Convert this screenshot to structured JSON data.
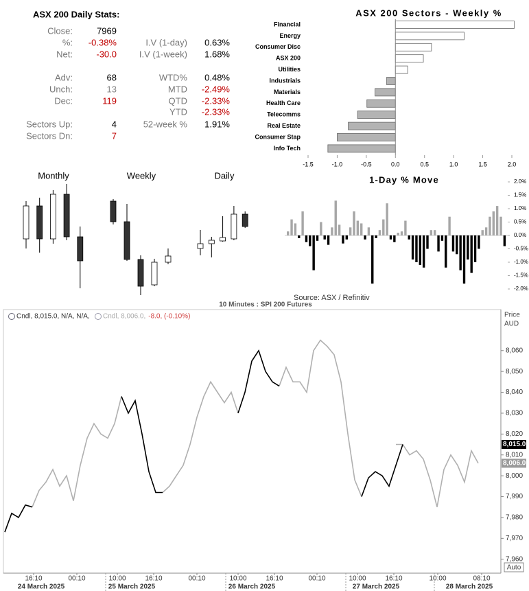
{
  "stats": {
    "title": "ASX 200 Daily Stats:",
    "left": [
      {
        "label": "Close:",
        "value": "7969"
      },
      {
        "label": "%:",
        "value": "-0.38%",
        "color": "#c00000"
      },
      {
        "label": "Net:",
        "value": "-30.0",
        "color": "#c00000"
      },
      {
        "label": "Adv:",
        "value": "68"
      },
      {
        "label": "Unch:",
        "value": "13",
        "color": "#888888"
      },
      {
        "label": "Dec:",
        "value": "119",
        "color": "#c00000"
      },
      {
        "label": "Sectors Up:",
        "value": "4"
      },
      {
        "label": "Sectors Dn:",
        "value": "7",
        "color": "#c00000"
      }
    ],
    "right": [
      {
        "label": "I.V (1-day)",
        "value": "0.63%"
      },
      {
        "label": "I.V (1-week)",
        "value": "1.68%"
      },
      {
        "label": "WTD%",
        "value": "0.48%"
      },
      {
        "label": "MTD",
        "value": "-2.49%",
        "color": "#c00000"
      },
      {
        "label": "QTD",
        "value": "-2.33%",
        "color": "#c00000"
      },
      {
        "label": "YTD",
        "value": "-2.33%",
        "color": "#c00000"
      },
      {
        "label": "52-week %",
        "value": "1.91%"
      }
    ]
  },
  "chart_data": [
    {
      "type": "hbar",
      "title": "ASX 200 Sectors - Weekly %",
      "categories": [
        "Financial",
        "Energy",
        "Consumer Disc",
        "ASX 200",
        "Utilities",
        "Industrials",
        "Materials",
        "Health Care",
        "Telecomms",
        "Real Estate",
        "Consumer Stap",
        "Info Tech"
      ],
      "values": [
        2.04,
        1.18,
        0.62,
        0.48,
        0.21,
        -0.15,
        -0.35,
        -0.49,
        -0.65,
        -0.81,
        -1.0,
        -1.16
      ],
      "positive_color": "#ffffff",
      "negative_color": "#b3b3b3",
      "xlim": [
        -1.5,
        2.0
      ],
      "xticks": [
        -1.5,
        {
          "value": -1,
          "label": "-1.0"
        },
        -0.5,
        {
          "value": 0,
          "label": "0.0"
        },
        0.5,
        {
          "value": 1,
          "label": "1.0"
        },
        1.5,
        {
          "value": 2,
          "label": "2.0"
        }
      ]
    },
    {
      "type": "candlestick",
      "title": "Monthly",
      "ylim": [
        0,
        165
      ],
      "open": [
        82,
        130,
        82,
        147,
        85
      ],
      "high": [
        137,
        142,
        153,
        162,
        100
      ],
      "low": [
        68,
        62,
        75,
        80,
        10
      ],
      "close": [
        130,
        82,
        147,
        85,
        50
      ]
    },
    {
      "type": "candlestick",
      "title": "Weekly",
      "ylim": [
        0,
        165
      ],
      "open": [
        137,
        107,
        52,
        15,
        48
      ],
      "high": [
        140,
        133,
        58,
        53,
        68
      ],
      "low": [
        103,
        50,
        0,
        13,
        45
      ],
      "close": [
        107,
        52,
        13,
        48,
        57
      ]
    },
    {
      "type": "candlestick",
      "title": "Daily",
      "ylim": [
        0,
        165
      ],
      "open": [
        68,
        75,
        79,
        82,
        118
      ],
      "high": [
        95,
        85,
        115,
        130,
        122
      ],
      "low": [
        58,
        55,
        78,
        80,
        98
      ],
      "close": [
        75,
        80,
        84,
        118,
        100
      ]
    },
    {
      "type": "column",
      "title": "1-Day % Move",
      "source": "Source: ASX / Refinitiv",
      "values": [
        0.15,
        0.6,
        0.45,
        -0.1,
        0.9,
        -0.25,
        -0.4,
        -1.3,
        -0.2,
        0.5,
        -0.15,
        -0.35,
        0.3,
        1.3,
        0.4,
        -0.3,
        -0.15,
        0.3,
        0.9,
        0.55,
        0.45,
        -0.15,
        0.3,
        -1.8,
        -0.1,
        0.2,
        0.6,
        1.2,
        -0.15,
        -0.25,
        0.1,
        0.15,
        0.55,
        -0.15,
        -0.9,
        -1.0,
        -1.1,
        -1.2,
        -0.5,
        0.2,
        0.2,
        -0.6,
        -0.2,
        -1.2,
        0.7,
        -0.6,
        -0.7,
        -1.3,
        -1.8,
        -0.9,
        -1.4,
        -1.0,
        -0.5,
        0.2,
        0.3,
        0.7,
        0.9,
        1.1,
        0.7,
        -0.4
      ],
      "positive_color": "#a6a6a6",
      "negative_color": "#000000",
      "ylim": [
        -2,
        2
      ],
      "yticks": [
        {
          "value": 2,
          "label": "2.0%"
        },
        {
          "value": 1.5,
          "label": "1.5%"
        },
        {
          "value": 1,
          "label": "1.0%"
        },
        {
          "value": 0.5,
          "label": "0.5%"
        },
        {
          "value": 0,
          "label": "0.0%"
        },
        {
          "value": -0.5,
          "label": "-0.5%"
        },
        {
          "value": -1,
          "label": "-1.0%"
        },
        {
          "value": -1.5,
          "label": "-1.5%"
        },
        {
          "value": -2,
          "label": "-2.0%"
        }
      ]
    },
    {
      "type": "line",
      "title": "10 Minutes : SPI 200 Futures",
      "y_axis_label": [
        "Price",
        "AUD"
      ],
      "auto_label": "Auto",
      "legend": [
        {
          "text": "Cndl, 8,015.0, N/A, N/A,"
        },
        {
          "text": "Cndl, 8,006.0,",
          "change": "-8.0, (-0.10%)"
        }
      ],
      "last_labels": [
        {
          "value": 8015,
          "label": "8,015.0",
          "color": "#000000"
        },
        {
          "value": 8006,
          "label": "8,006.0",
          "color": "#9a9a9a"
        }
      ],
      "x": [
        0,
        1,
        2,
        3,
        4,
        5,
        6,
        7,
        8,
        9,
        10,
        11,
        12,
        13,
        14,
        15,
        16,
        17,
        18,
        19,
        20,
        21,
        22,
        23,
        24,
        25,
        26,
        27,
        28,
        29,
        30,
        31,
        32,
        33,
        34,
        35,
        36,
        37,
        38,
        39,
        40,
        41,
        42,
        43,
        44,
        45,
        46,
        47,
        48,
        49,
        50,
        51,
        52,
        53,
        54,
        55,
        56,
        57,
        58,
        59,
        60,
        61,
        62,
        63,
        64,
        65,
        66,
        67,
        68,
        69
      ],
      "series": [
        {
          "color": "#b0b0b0",
          "values": [
            null,
            null,
            null,
            null,
            7985,
            7993,
            7997,
            8003,
            7995,
            8000,
            7988,
            8005,
            8018,
            8025,
            8020,
            8018,
            8025,
            8038,
            null,
            null,
            null,
            null,
            null,
            7992,
            7995,
            8000,
            8005,
            8015,
            8028,
            8038,
            8045,
            8040,
            8035,
            8040,
            8030,
            null,
            null,
            null,
            null,
            null,
            8043,
            8052,
            8045,
            8045,
            8040,
            8060,
            8065,
            8062,
            8058,
            8045,
            8020,
            7998,
            7990,
            null,
            null,
            null,
            null,
            8015,
            8015,
            8010,
            8012,
            8008,
            7998,
            7985,
            8003,
            8010,
            8005,
            7997,
            8012,
            8006
          ]
        },
        {
          "color": "#000000",
          "values": [
            7973,
            7982,
            7980,
            7986,
            7985,
            null,
            null,
            null,
            null,
            null,
            null,
            null,
            null,
            null,
            null,
            null,
            null,
            8038,
            8030,
            8036,
            8020,
            8002,
            7992,
            7992,
            null,
            null,
            null,
            null,
            null,
            null,
            null,
            null,
            null,
            null,
            8030,
            8040,
            8055,
            8060,
            8050,
            8045,
            8043,
            null,
            null,
            null,
            null,
            null,
            null,
            null,
            null,
            null,
            null,
            null,
            7990,
            7999,
            8002,
            8000,
            7995,
            8005,
            8015,
            null,
            null,
            null,
            null,
            null,
            null,
            null,
            null,
            null,
            null,
            null
          ]
        }
      ],
      "xlim": [
        -0.2,
        72.3
      ],
      "ylim": [
        7953,
        8079
      ],
      "yticks": [
        {
          "value": 8060,
          "label": "8,060"
        },
        {
          "value": 8050,
          "label": "8,050"
        },
        {
          "value": 8040,
          "label": "8,040"
        },
        {
          "value": 8030,
          "label": "8,030"
        },
        {
          "value": 8020,
          "label": "8,020"
        },
        {
          "value": 8010,
          "label": "8,010"
        },
        {
          "value": 8000,
          "label": "8,000"
        },
        {
          "value": 7990,
          "label": "7,990"
        },
        {
          "value": 7980,
          "label": "7,980"
        },
        {
          "value": 7970,
          "label": "7,970"
        },
        {
          "value": 7960,
          "label": "7,960"
        }
      ],
      "xticks": [
        {
          "value": 4.2,
          "label": "16:10"
        },
        {
          "value": 10.5,
          "label": "00:10"
        },
        {
          "value": 16.4,
          "label": "10:00"
        },
        {
          "value": 21.7,
          "label": "16:10"
        },
        {
          "value": 28,
          "label": "00:10"
        },
        {
          "value": 34,
          "label": "10:00"
        },
        {
          "value": 39.3,
          "label": "16:10"
        },
        {
          "value": 45.5,
          "label": "00:10"
        },
        {
          "value": 51.4,
          "label": "10:00"
        },
        {
          "value": 56.7,
          "label": "16:10"
        },
        {
          "value": 63.1,
          "label": "10:00"
        },
        {
          "value": 69.5,
          "label": "08:10"
        }
      ],
      "date_ticks": [
        {
          "value": 5.3,
          "label": "24 March 2025"
        },
        {
          "value": 18.5,
          "label": "25 March 2025"
        },
        {
          "value": 36,
          "label": "26 March 2025"
        },
        {
          "value": 54.1,
          "label": "27 March 2025"
        },
        {
          "value": 67.7,
          "label": "28 March 2025"
        }
      ]
    }
  ]
}
